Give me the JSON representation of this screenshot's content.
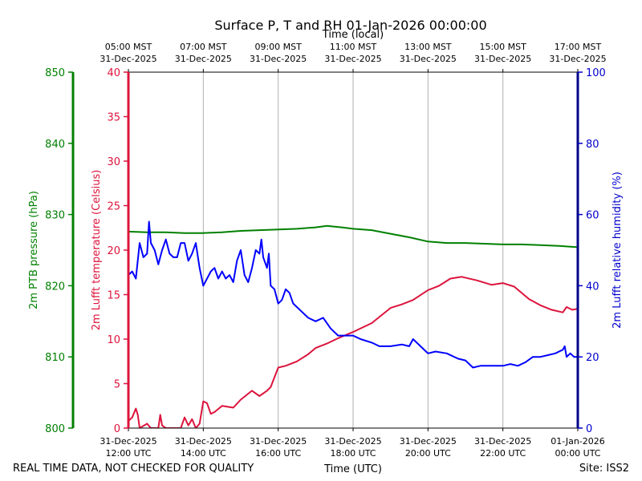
{
  "chart_data": {
    "type": "line",
    "title": "Surface P, T and RH 01-Jan-2026 00:00:00",
    "top_axis_title": "Time (local)",
    "xlabel": "Time (UTC)",
    "footer_left": "REAL TIME DATA, NOT CHECKED FOR QUALITY",
    "footer_right": "Site: ISS2",
    "x_range_hours": [
      0,
      12
    ],
    "bottom_ticks": [
      {
        "h": 0,
        "line1": "31-Dec-2025",
        "line2": "12:00 UTC"
      },
      {
        "h": 2,
        "line1": "31-Dec-2025",
        "line2": "14:00 UTC"
      },
      {
        "h": 4,
        "line1": "31-Dec-2025",
        "line2": "16:00 UTC"
      },
      {
        "h": 6,
        "line1": "31-Dec-2025",
        "line2": "18:00 UTC"
      },
      {
        "h": 8,
        "line1": "31-Dec-2025",
        "line2": "20:00 UTC"
      },
      {
        "h": 10,
        "line1": "31-Dec-2025",
        "line2": "22:00 UTC"
      },
      {
        "h": 12,
        "line1": "01-Jan-2026",
        "line2": "00:00 UTC"
      }
    ],
    "top_ticks": [
      {
        "h": 0,
        "line1": "05:00 MST",
        "line2": "31-Dec-2025"
      },
      {
        "h": 2,
        "line1": "07:00 MST",
        "line2": "31-Dec-2025"
      },
      {
        "h": 4,
        "line1": "09:00 MST",
        "line2": "31-Dec-2025"
      },
      {
        "h": 6,
        "line1": "11:00 MST",
        "line2": "31-Dec-2025"
      },
      {
        "h": 8,
        "line1": "13:00 MST",
        "line2": "31-Dec-2025"
      },
      {
        "h": 10,
        "line1": "15:00 MST",
        "line2": "31-Dec-2025"
      },
      {
        "h": 12,
        "line1": "17:00 MST",
        "line2": "31-Dec-2025"
      }
    ],
    "axes": {
      "pressure": {
        "label": "2m PTB pressure (hPa)",
        "ylim": [
          800,
          850
        ],
        "ticks": [
          "800",
          "810",
          "820",
          "830",
          "840",
          "850"
        ],
        "color": "#008000"
      },
      "temperature": {
        "label": "2m Lufft temperature (Celsius)",
        "ylim": [
          0,
          40
        ],
        "ticks": [
          "0",
          "5",
          "10",
          "15",
          "20",
          "25",
          "30",
          "35",
          "40"
        ],
        "color": "#dc143c"
      },
      "humidity": {
        "label": "2m Lufft relative humidity (%)",
        "ylim": [
          0,
          100
        ],
        "ticks": [
          "0",
          "20",
          "40",
          "60",
          "80",
          "100"
        ],
        "color": "#0000cd"
      }
    },
    "series": [
      {
        "name": "Pressure",
        "axis": "pressure",
        "color": "#008000",
        "points": [
          [
            0,
            827.6
          ],
          [
            0.5,
            827.5
          ],
          [
            1,
            827.5
          ],
          [
            1.5,
            827.4
          ],
          [
            2,
            827.4
          ],
          [
            2.5,
            827.5
          ],
          [
            3,
            827.7
          ],
          [
            3.5,
            827.8
          ],
          [
            4,
            827.9
          ],
          [
            4.5,
            828.0
          ],
          [
            5,
            828.2
          ],
          [
            5.3,
            828.4
          ],
          [
            5.7,
            828.2
          ],
          [
            6,
            828.0
          ],
          [
            6.5,
            827.8
          ],
          [
            7,
            827.3
          ],
          [
            7.5,
            826.8
          ],
          [
            8,
            826.2
          ],
          [
            8.5,
            826.0
          ],
          [
            9,
            826.0
          ],
          [
            9.5,
            825.9
          ],
          [
            10,
            825.8
          ],
          [
            10.5,
            825.8
          ],
          [
            11,
            825.7
          ],
          [
            11.5,
            825.6
          ],
          [
            12,
            825.4
          ]
        ]
      },
      {
        "name": "Temperature",
        "axis": "temperature",
        "color": "#dc143c",
        "points": [
          [
            0,
            0.8
          ],
          [
            0.1,
            1.2
          ],
          [
            0.2,
            2.2
          ],
          [
            0.25,
            1.5
          ],
          [
            0.3,
            0
          ],
          [
            0.5,
            0.5
          ],
          [
            0.6,
            0
          ],
          [
            0.8,
            0
          ],
          [
            0.85,
            1.5
          ],
          [
            0.9,
            0.3
          ],
          [
            1,
            0
          ],
          [
            1.4,
            0
          ],
          [
            1.5,
            1.2
          ],
          [
            1.6,
            0.3
          ],
          [
            1.7,
            1.0
          ],
          [
            1.8,
            0
          ],
          [
            1.9,
            0.5
          ],
          [
            2,
            3.0
          ],
          [
            2.1,
            2.8
          ],
          [
            2.2,
            1.6
          ],
          [
            2.3,
            1.8
          ],
          [
            2.5,
            2.5
          ],
          [
            2.8,
            2.3
          ],
          [
            3,
            3.2
          ],
          [
            3.3,
            4.2
          ],
          [
            3.5,
            3.6
          ],
          [
            3.7,
            4.2
          ],
          [
            3.8,
            4.6
          ],
          [
            4,
            6.8
          ],
          [
            4.2,
            7.0
          ],
          [
            4.5,
            7.5
          ],
          [
            4.8,
            8.3
          ],
          [
            5,
            9.0
          ],
          [
            5.3,
            9.5
          ],
          [
            5.6,
            10.1
          ],
          [
            6,
            10.8
          ],
          [
            6.5,
            11.8
          ],
          [
            7,
            13.5
          ],
          [
            7.3,
            13.9
          ],
          [
            7.6,
            14.4
          ],
          [
            8,
            15.5
          ],
          [
            8.3,
            16.0
          ],
          [
            8.6,
            16.8
          ],
          [
            8.9,
            17.0
          ],
          [
            9.3,
            16.6
          ],
          [
            9.7,
            16.1
          ],
          [
            10,
            16.3
          ],
          [
            10.3,
            15.9
          ],
          [
            10.7,
            14.5
          ],
          [
            11,
            13.8
          ],
          [
            11.3,
            13.3
          ],
          [
            11.6,
            13.0
          ],
          [
            11.7,
            13.6
          ],
          [
            11.85,
            13.3
          ],
          [
            12,
            13.4
          ]
        ]
      },
      {
        "name": "Relative humidity",
        "axis": "humidity",
        "color": "#0000ff",
        "points": [
          [
            0,
            43
          ],
          [
            0.1,
            44
          ],
          [
            0.2,
            42
          ],
          [
            0.3,
            52
          ],
          [
            0.4,
            48
          ],
          [
            0.5,
            49
          ],
          [
            0.55,
            58
          ],
          [
            0.6,
            52
          ],
          [
            0.7,
            50
          ],
          [
            0.8,
            46
          ],
          [
            0.9,
            50
          ],
          [
            1,
            53
          ],
          [
            1.1,
            49
          ],
          [
            1.2,
            48
          ],
          [
            1.3,
            48
          ],
          [
            1.4,
            52
          ],
          [
            1.5,
            52
          ],
          [
            1.6,
            47
          ],
          [
            1.7,
            49
          ],
          [
            1.8,
            52
          ],
          [
            1.9,
            45
          ],
          [
            2,
            40
          ],
          [
            2.1,
            42
          ],
          [
            2.2,
            44
          ],
          [
            2.3,
            45
          ],
          [
            2.4,
            42
          ],
          [
            2.5,
            44
          ],
          [
            2.6,
            42
          ],
          [
            2.7,
            43
          ],
          [
            2.8,
            41
          ],
          [
            2.9,
            47
          ],
          [
            3,
            50
          ],
          [
            3.1,
            43
          ],
          [
            3.2,
            41
          ],
          [
            3.3,
            45
          ],
          [
            3.4,
            50
          ],
          [
            3.5,
            49
          ],
          [
            3.55,
            53
          ],
          [
            3.6,
            48
          ],
          [
            3.7,
            45
          ],
          [
            3.75,
            49
          ],
          [
            3.8,
            40
          ],
          [
            3.9,
            39
          ],
          [
            4,
            35
          ],
          [
            4.1,
            36
          ],
          [
            4.2,
            39
          ],
          [
            4.3,
            38
          ],
          [
            4.4,
            35
          ],
          [
            4.6,
            33
          ],
          [
            4.8,
            31
          ],
          [
            5,
            30
          ],
          [
            5.2,
            31
          ],
          [
            5.4,
            28
          ],
          [
            5.6,
            26
          ],
          [
            5.8,
            26
          ],
          [
            6,
            26
          ],
          [
            6.2,
            25
          ],
          [
            6.5,
            24
          ],
          [
            6.7,
            23
          ],
          [
            7,
            23
          ],
          [
            7.3,
            23.5
          ],
          [
            7.5,
            23
          ],
          [
            7.6,
            25
          ],
          [
            7.8,
            23
          ],
          [
            8,
            21
          ],
          [
            8.2,
            21.5
          ],
          [
            8.5,
            21
          ],
          [
            8.8,
            19.5
          ],
          [
            9,
            19
          ],
          [
            9.2,
            17
          ],
          [
            9.4,
            17.5
          ],
          [
            9.7,
            17.5
          ],
          [
            10,
            17.5
          ],
          [
            10.2,
            18
          ],
          [
            10.4,
            17.5
          ],
          [
            10.6,
            18.5
          ],
          [
            10.8,
            20
          ],
          [
            11,
            20
          ],
          [
            11.2,
            20.5
          ],
          [
            11.4,
            21
          ],
          [
            11.5,
            21.5
          ],
          [
            11.6,
            22
          ],
          [
            11.65,
            23
          ],
          [
            11.7,
            20
          ],
          [
            11.8,
            21
          ],
          [
            11.9,
            20
          ],
          [
            12,
            20
          ]
        ]
      }
    ]
  }
}
